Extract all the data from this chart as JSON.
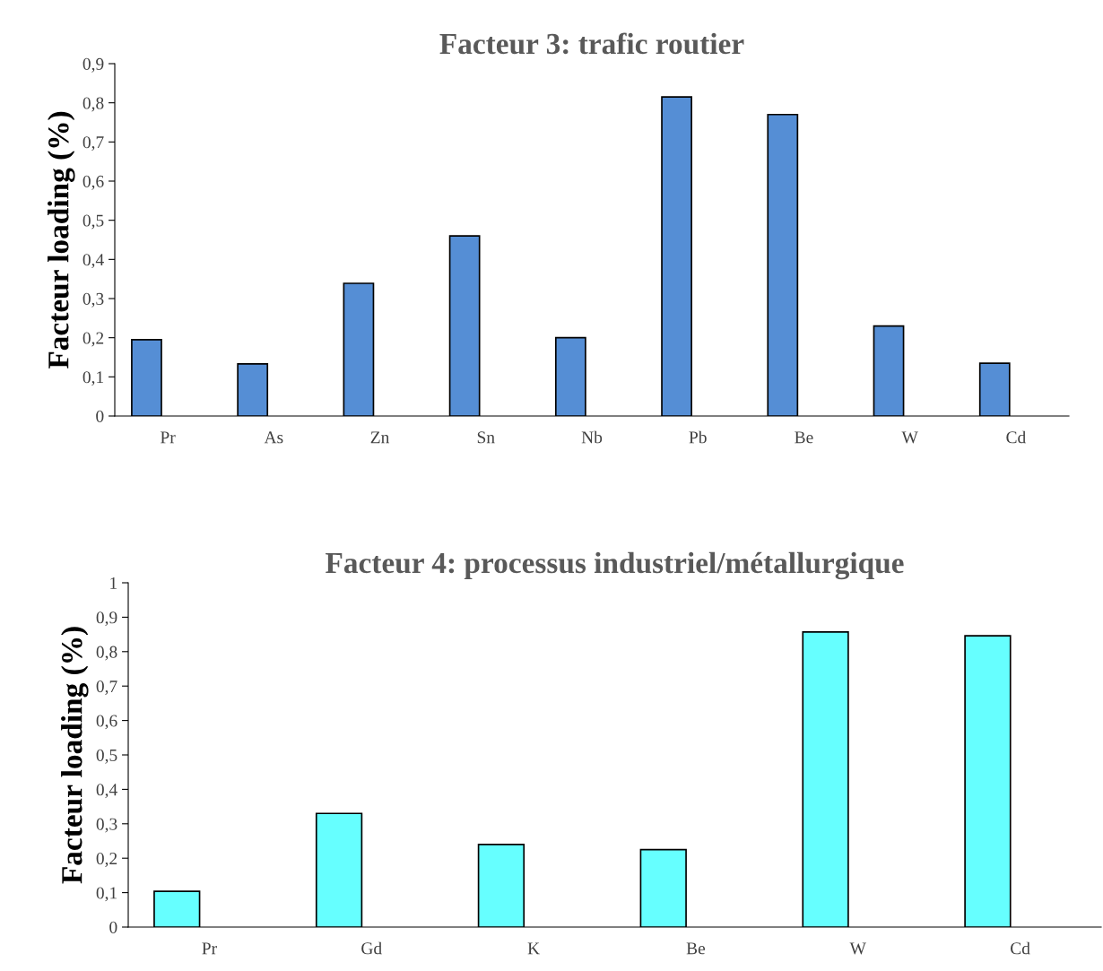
{
  "chart_data": [
    {
      "type": "bar",
      "title": "Facteur 3: trafic routier",
      "ylabel": "Facteur loading (%)",
      "categories": [
        "Pr",
        "As",
        "Zn",
        "Sn",
        "Nb",
        "Pb",
        "Be",
        "W",
        "Cd"
      ],
      "values": [
        0.195,
        0.133,
        0.339,
        0.46,
        0.2,
        0.815,
        0.77,
        0.23,
        0.135
      ],
      "color": "#558ed5",
      "ylim": [
        0,
        0.9
      ],
      "yticks": [
        {
          "value": 0,
          "label": "0"
        },
        {
          "value": 0.1,
          "label": "0,1"
        },
        {
          "value": 0.2,
          "label": "0,2"
        },
        {
          "value": 0.3,
          "label": "0,3"
        },
        {
          "value": 0.4,
          "label": "0,4"
        },
        {
          "value": 0.5,
          "label": "0,5"
        },
        {
          "value": 0.6,
          "label": "0,6"
        },
        {
          "value": 0.7,
          "label": "0,7"
        },
        {
          "value": 0.8,
          "label": "0,8"
        },
        {
          "value": 0.9,
          "label": "0,9"
        }
      ],
      "grid": false,
      "legend": false
    },
    {
      "type": "bar",
      "title": "Facteur 4: processus industriel/métallurgique",
      "ylabel": "Facteur loading (%)",
      "categories": [
        "Pr",
        "Gd",
        "K",
        "Be",
        "W",
        "Cd"
      ],
      "values": [
        0.104,
        0.33,
        0.24,
        0.225,
        0.857,
        0.846
      ],
      "color": "#66ffff",
      "ylim": [
        0,
        1
      ],
      "yticks": [
        {
          "value": 0,
          "label": "0"
        },
        {
          "value": 0.1,
          "label": "0,1"
        },
        {
          "value": 0.2,
          "label": "0,2"
        },
        {
          "value": 0.3,
          "label": "0,3"
        },
        {
          "value": 0.4,
          "label": "0,4"
        },
        {
          "value": 0.5,
          "label": "0,5"
        },
        {
          "value": 0.6,
          "label": "0,6"
        },
        {
          "value": 0.7,
          "label": "0,7"
        },
        {
          "value": 0.8,
          "label": "0,8"
        },
        {
          "value": 0.9,
          "label": "0,9"
        },
        {
          "value": 1,
          "label": "1"
        }
      ],
      "grid": false,
      "legend": false
    }
  ]
}
